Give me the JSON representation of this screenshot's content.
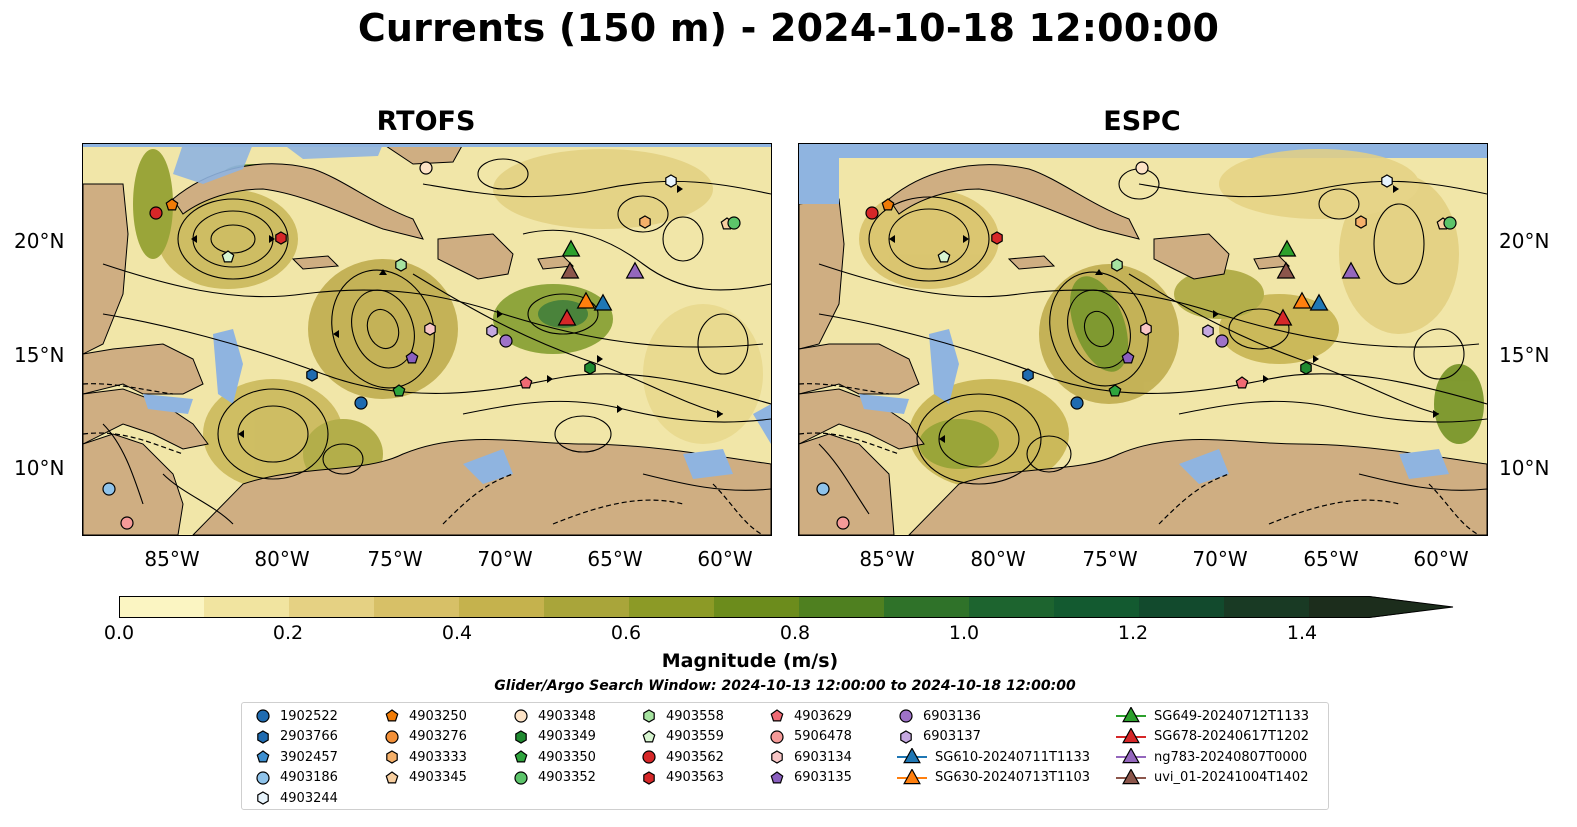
{
  "title": "Currents (150 m) - 2024-10-18 12:00:00",
  "panels": [
    {
      "title": "RTOFS"
    },
    {
      "title": "ESPC"
    }
  ],
  "lat_labels": [
    "20°N",
    "15°N",
    "10°N"
  ],
  "lon_labels": [
    "85°W",
    "80°W",
    "75°W",
    "70°W",
    "65°W",
    "60°W"
  ],
  "colorbar": {
    "label": "Magnitude (m/s)",
    "ticks": [
      "0.0",
      "0.2",
      "0.4",
      "0.6",
      "0.8",
      "1.0",
      "1.2",
      "1.4"
    ],
    "colors": [
      "#fbf5c2",
      "#f1e4a0",
      "#e5d183",
      "#d7c067",
      "#c5b24d",
      "#a9a53a",
      "#8c9a26",
      "#6c8c1c",
      "#4f8020",
      "#2f7229",
      "#1d642f",
      "#135a30",
      "#124a2d",
      "#193a24",
      "#1c2d1c"
    ]
  },
  "search_window": "Glider/Argo Search Window: 2024-10-13 12:00:00 to 2024-10-18 12:00:00",
  "legend": {
    "columns": [
      [
        {
          "label": "1902522",
          "shape": "circle",
          "color": "#1f6bb0"
        },
        {
          "label": "2903766",
          "shape": "hexagon",
          "color": "#1f6bb0"
        },
        {
          "label": "3902457",
          "shape": "pentagon",
          "color": "#3d8fd0"
        },
        {
          "label": "4903186",
          "shape": "circle",
          "color": "#8fc3ea"
        },
        {
          "label": "4903244",
          "shape": "hexagon",
          "color": "#e8f4fc"
        }
      ],
      [
        {
          "label": "4903250",
          "shape": "pentagon",
          "color": "#f07b06"
        },
        {
          "label": "4903276",
          "shape": "circle",
          "color": "#f39038"
        },
        {
          "label": "4903333",
          "shape": "hexagon",
          "color": "#f5b06a"
        },
        {
          "label": "4903345",
          "shape": "pentagon",
          "color": "#f8cfa0"
        }
      ],
      [
        {
          "label": "4903348",
          "shape": "circle",
          "color": "#fde3c6"
        },
        {
          "label": "4903349",
          "shape": "hexagon",
          "color": "#1f8a30"
        },
        {
          "label": "4903350",
          "shape": "pentagon",
          "color": "#2ea43d"
        },
        {
          "label": "4903352",
          "shape": "circle",
          "color": "#5cc46a"
        }
      ],
      [
        {
          "label": "4903558",
          "shape": "hexagon",
          "color": "#a6e3a0"
        },
        {
          "label": "4903559",
          "shape": "pentagon",
          "color": "#d7f5d0"
        },
        {
          "label": "4903562",
          "shape": "circle",
          "color": "#d62728"
        },
        {
          "label": "4903563",
          "shape": "hexagon",
          "color": "#d62728"
        }
      ],
      [
        {
          "label": "4903629",
          "shape": "pentagon",
          "color": "#f06a74"
        },
        {
          "label": "5906478",
          "shape": "circle",
          "color": "#f59a98"
        },
        {
          "label": "6903134",
          "shape": "hexagon",
          "color": "#f8c6c6"
        },
        {
          "label": "6903135",
          "shape": "pentagon",
          "color": "#8a5fbf"
        }
      ],
      [
        {
          "label": "6903136",
          "shape": "circle",
          "color": "#9e72c8"
        },
        {
          "label": "6903137",
          "shape": "hexagon",
          "color": "#c5a8e0"
        },
        {
          "label": "SG610-20240711T1133",
          "shape": "triangle",
          "color": "#1f77b4"
        },
        {
          "label": "SG630-20240713T1103",
          "shape": "triangle",
          "color": "#ff7f0e"
        }
      ],
      [
        {
          "label": "SG649-20240712T1133",
          "shape": "triangle",
          "color": "#2ca02c"
        },
        {
          "label": "SG678-20240617T1202",
          "shape": "triangle",
          "color": "#d62728"
        },
        {
          "label": "ng783-20240807T0000",
          "shape": "triangle",
          "color": "#9467bd"
        },
        {
          "label": "uvi_01-20241004T1402",
          "shape": "triangle",
          "color": "#8c564b"
        }
      ]
    ]
  },
  "map_colors": {
    "land": "#cfae82",
    "water_shallow": "#8fb4e0",
    "ocean_base": "#f1e6a8",
    "streamline": "#000000"
  }
}
